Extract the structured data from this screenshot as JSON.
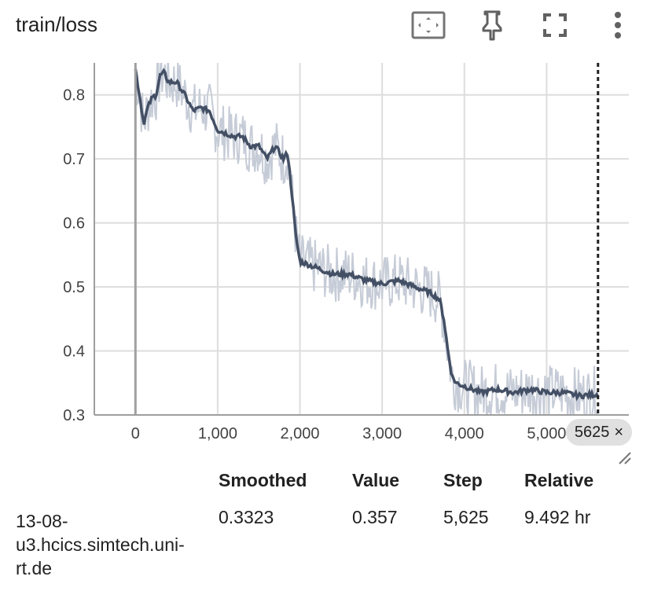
{
  "header": {
    "title": "train/loss"
  },
  "toolbar": {
    "fit_icon": "fit-domain-icon",
    "pin_icon": "pin-icon",
    "fullscreen_icon": "fullscreen-icon",
    "more_icon": "more-vert-icon"
  },
  "step_chip": {
    "label": "5625",
    "close": "×"
  },
  "table": {
    "headers": {
      "smoothed": "Smoothed",
      "value": "Value",
      "step": "Step",
      "relative": "Relative"
    },
    "row": {
      "run_lines": [
        "13-08-",
        "u3.hcics.simtech.uni-",
        "rt.de"
      ],
      "smoothed": "0.3323",
      "value": "0.357",
      "step": "5,625",
      "relative": "9.492 hr"
    }
  },
  "colors": {
    "smoothed": "#434f64",
    "raw": "#c6ccd7",
    "grid": "#dddddd",
    "axis": "#9e9e9e"
  },
  "chart_data": {
    "type": "line",
    "x_ticks": [
      0,
      1000,
      2000,
      3000,
      4000,
      5000
    ],
    "x_tick_labels": [
      "0",
      "1,000",
      "2,000",
      "3,000",
      "4,000",
      "5,000"
    ],
    "y_ticks": [
      0.3,
      0.4,
      0.5,
      0.6,
      0.7,
      0.8
    ],
    "y_tick_labels": [
      "0.3",
      "0.4",
      "0.5",
      "0.6",
      "0.7",
      "0.8"
    ],
    "xlim": [
      -500,
      6000
    ],
    "ylim": [
      0.3,
      0.85
    ],
    "grid": true,
    "cursor_step": 5625,
    "series": [
      {
        "x": [
          0,
          50,
          100,
          150,
          200,
          250,
          300,
          350,
          400,
          500,
          600,
          700,
          800,
          900,
          1000,
          1100,
          1200,
          1300,
          1400,
          1500,
          1600,
          1700,
          1800,
          1850,
          1900,
          1950,
          2000,
          2100,
          2200,
          2400,
          2600,
          2800,
          3000,
          3200,
          3400,
          3600,
          3700,
          3750,
          3800,
          3850,
          3900,
          4000,
          4200,
          4400,
          4600,
          4800,
          5000,
          5200,
          5400,
          5625
        ],
        "y": [
          0.84,
          0.8,
          0.755,
          0.78,
          0.795,
          0.8,
          0.83,
          0.835,
          0.82,
          0.82,
          0.8,
          0.775,
          0.78,
          0.775,
          0.745,
          0.74,
          0.735,
          0.735,
          0.72,
          0.72,
          0.7,
          0.72,
          0.7,
          0.71,
          0.65,
          0.58,
          0.54,
          0.535,
          0.53,
          0.52,
          0.52,
          0.51,
          0.505,
          0.51,
          0.5,
          0.49,
          0.48,
          0.45,
          0.4,
          0.36,
          0.35,
          0.345,
          0.335,
          0.34,
          0.335,
          0.34,
          0.335,
          0.335,
          0.33,
          0.3323
        ]
      }
    ]
  }
}
